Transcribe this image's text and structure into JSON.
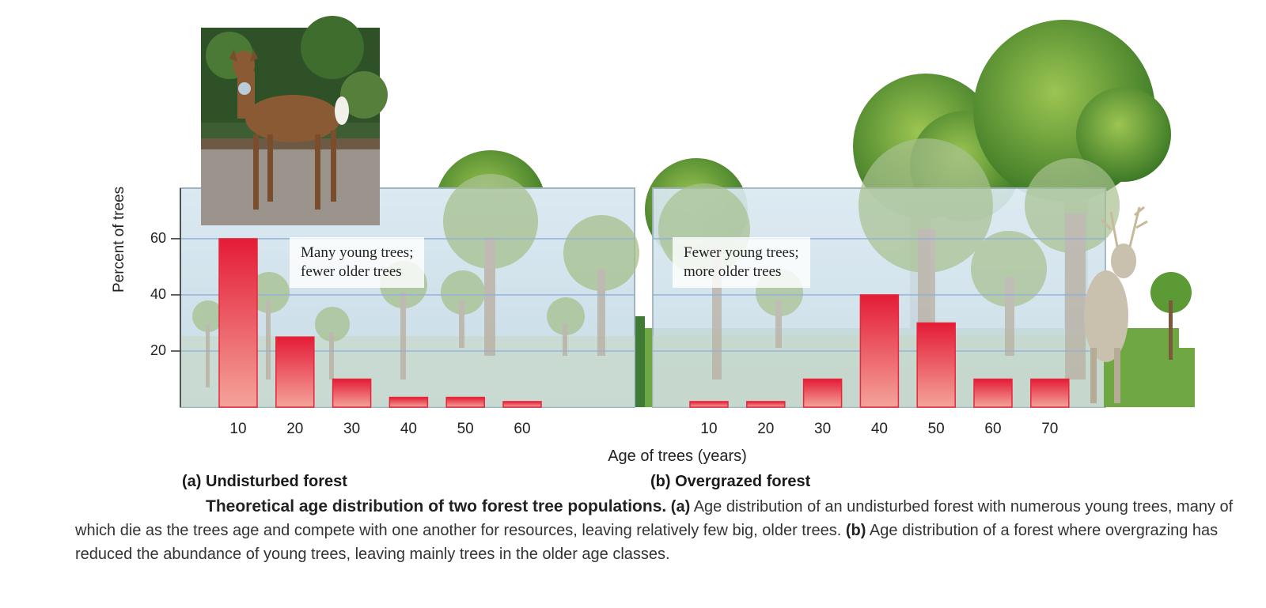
{
  "chart_data": [
    {
      "type": "bar",
      "title": "(a) Undisturbed forest",
      "annotation": [
        "Many young trees;",
        "fewer older trees"
      ],
      "categories": [
        "10",
        "20",
        "30",
        "40",
        "50",
        "60"
      ],
      "values": [
        60,
        25,
        10,
        3.5,
        3.5,
        2
      ],
      "xlabel": "Age of trees (years)",
      "ylabel": "Percent of trees",
      "yticks": [
        "20",
        "40",
        "60"
      ],
      "ylim": [
        0,
        78
      ],
      "grid": true,
      "bar_color": "#e8263a"
    },
    {
      "type": "bar",
      "title": "(b) Overgrazed forest",
      "annotation": [
        "Fewer young trees;",
        "more older trees"
      ],
      "categories": [
        "10",
        "20",
        "30",
        "40",
        "50",
        "60",
        "70"
      ],
      "values": [
        2,
        2,
        10,
        40,
        30,
        10,
        10
      ],
      "xlabel": "Age of trees (years)",
      "ylabel": "Percent of trees",
      "ylim": [
        0,
        78
      ],
      "grid": true,
      "bar_color": "#e8263a"
    }
  ],
  "caption": {
    "title": "Theoretical age distribution of two forest tree populations.",
    "label_a": "(a)",
    "text_a": " Age distribution of an undisturbed forest with numerous young trees, many of which die as the trees age and compete with one another for resources, leaving relatively few big, older trees. ",
    "label_b": "(b)",
    "text_b": " Age distribution of a forest where overgrazing has reduced the abundance of young trees, leaving mainly trees in the older age classes."
  },
  "images": {
    "deer_photo": "deer-photo",
    "buck_illustration": "buck-illustration"
  }
}
